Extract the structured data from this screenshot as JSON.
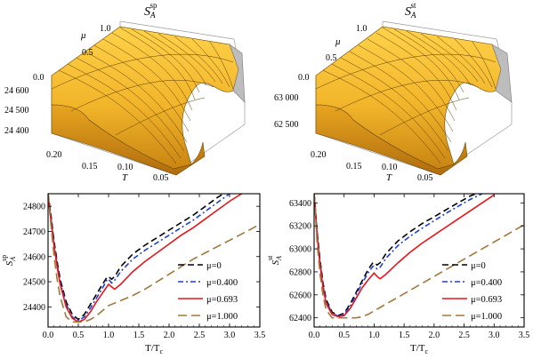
{
  "panels_3d": [
    {
      "title_main": "S",
      "title_sub": "A",
      "title_sup": "sp",
      "mu_label": "μ",
      "mu_ticks": [
        "1.0",
        "0.5",
        "0.0"
      ],
      "t_label": "T",
      "t_ticks": [
        "0.20",
        "0.15",
        "0.10",
        "0.05"
      ],
      "z_ticks": [
        "24 600",
        "24 500",
        "24 400"
      ]
    },
    {
      "title_main": "S",
      "title_sub": "A",
      "title_sup": "st",
      "mu_label": "μ",
      "mu_ticks": [
        "1.0",
        "0.5",
        "0.0"
      ],
      "t_label": "T",
      "t_ticks": [
        "0.20",
        "0.15",
        "0.10",
        "0.05"
      ],
      "z_ticks": [
        "63 000",
        "62 500"
      ]
    }
  ],
  "chart_data": [
    {
      "type": "line",
      "xlabel": "T/T",
      "xlabel_sub": "c",
      "ylabel": "S",
      "ylabel_sub": "A",
      "ylabel_sup": "sp",
      "xlim": [
        0,
        3.5
      ],
      "ylim": [
        24320,
        24850
      ],
      "xticks": [
        "0.0",
        "0.5",
        "1.0",
        "1.5",
        "2.0",
        "2.5",
        "3.0",
        "3.5"
      ],
      "yticks": [
        "24400",
        "24500",
        "24600",
        "24700",
        "24800"
      ],
      "legend_position": "bottom-right",
      "series": [
        {
          "name": "μ=0",
          "color": "#000000",
          "dash": "7,4",
          "x": [
            0.0,
            0.05,
            0.1,
            0.15,
            0.2,
            0.3,
            0.4,
            0.5,
            0.6,
            0.7,
            0.8,
            0.9,
            0.98,
            1.0,
            1.05,
            1.1,
            1.2,
            1.4,
            1.6,
            1.8,
            2.0,
            2.2,
            2.4,
            2.6,
            2.8,
            2.9
          ],
          "y": [
            24850,
            24760,
            24660,
            24580,
            24510,
            24420,
            24370,
            24350,
            24370,
            24410,
            24450,
            24490,
            24520,
            24520,
            24510,
            24520,
            24560,
            24610,
            24645,
            24675,
            24705,
            24735,
            24765,
            24800,
            24835,
            24850
          ]
        },
        {
          "name": "μ=0.400",
          "color": "#1f3fd0",
          "dash": "6,3,2,3",
          "x": [
            0.0,
            0.05,
            0.1,
            0.15,
            0.2,
            0.3,
            0.4,
            0.5,
            0.6,
            0.7,
            0.8,
            0.9,
            0.98,
            1.0,
            1.05,
            1.1,
            1.2,
            1.4,
            1.6,
            1.8,
            2.0,
            2.2,
            2.4,
            2.6,
            2.8,
            3.0
          ],
          "y": [
            24850,
            24750,
            24650,
            24570,
            24500,
            24410,
            24360,
            24345,
            24360,
            24395,
            24435,
            24475,
            24510,
            24510,
            24495,
            24505,
            24540,
            24590,
            24625,
            24655,
            24685,
            24715,
            24745,
            24780,
            24815,
            24850
          ]
        },
        {
          "name": "μ=0.693",
          "color": "#e8151b",
          "dash": "",
          "x": [
            0.0,
            0.05,
            0.1,
            0.15,
            0.2,
            0.3,
            0.4,
            0.5,
            0.6,
            0.7,
            0.8,
            0.9,
            1.0,
            1.05,
            1.1,
            1.2,
            1.4,
            1.6,
            1.8,
            2.0,
            2.2,
            2.4,
            2.6,
            2.8,
            3.0,
            3.2
          ],
          "y": [
            24850,
            24740,
            24640,
            24560,
            24490,
            24400,
            24355,
            24340,
            24350,
            24380,
            24420,
            24455,
            24490,
            24480,
            24470,
            24490,
            24540,
            24580,
            24615,
            24650,
            24685,
            24715,
            24750,
            24785,
            24820,
            24850
          ]
        },
        {
          "name": "μ=1.000",
          "color": "#a0783c",
          "dash": "10,5",
          "x": [
            0.0,
            0.05,
            0.1,
            0.15,
            0.2,
            0.3,
            0.4,
            0.5,
            0.6,
            0.7,
            0.8,
            0.9,
            1.0,
            1.1,
            1.2,
            1.4,
            1.6,
            1.8,
            2.0,
            2.2,
            2.4,
            2.6,
            2.8,
            3.0,
            3.2,
            3.4,
            3.5
          ],
          "y": [
            24850,
            24720,
            24600,
            24510,
            24440,
            24360,
            24340,
            24340,
            24340,
            24350,
            24365,
            24385,
            24405,
            24415,
            24425,
            24445,
            24470,
            24500,
            24530,
            24560,
            24590,
            24615,
            24640,
            24665,
            24690,
            24715,
            24730
          ]
        }
      ]
    },
    {
      "type": "line",
      "xlabel": "T/T",
      "xlabel_sub": "c",
      "ylabel": "S",
      "ylabel_sub": "A",
      "ylabel_sup": "st",
      "xlim": [
        0,
        3.5
      ],
      "ylim": [
        62320,
        63480
      ],
      "xticks": [
        "0.0",
        "0.5",
        "1.0",
        "1.5",
        "2.0",
        "2.5",
        "3.0",
        "3.5"
      ],
      "yticks": [
        "62400",
        "62600",
        "62800",
        "63000",
        "63200",
        "63400"
      ],
      "legend_position": "bottom-right",
      "series": [
        {
          "name": "μ=0",
          "color": "#000000",
          "dash": "7,4",
          "x": [
            0.0,
            0.05,
            0.1,
            0.15,
            0.2,
            0.3,
            0.4,
            0.5,
            0.6,
            0.7,
            0.8,
            0.9,
            0.98,
            1.0,
            1.05,
            1.1,
            1.2,
            1.4,
            1.6,
            1.8,
            2.0,
            2.2,
            2.4,
            2.6,
            2.7
          ],
          "y": [
            63480,
            63150,
            62900,
            62700,
            62560,
            62450,
            62420,
            62440,
            62520,
            62620,
            62720,
            62820,
            62880,
            62880,
            62860,
            62880,
            62960,
            63070,
            63150,
            63220,
            63280,
            63340,
            63400,
            63460,
            63480
          ]
        },
        {
          "name": "μ=0.400",
          "color": "#1f3fd0",
          "dash": "6,3,2,3",
          "x": [
            0.0,
            0.05,
            0.1,
            0.15,
            0.2,
            0.3,
            0.4,
            0.5,
            0.6,
            0.7,
            0.8,
            0.9,
            0.98,
            1.0,
            1.05,
            1.1,
            1.2,
            1.4,
            1.6,
            1.8,
            2.0,
            2.2,
            2.4,
            2.6,
            2.8
          ],
          "y": [
            63480,
            63140,
            62880,
            62680,
            62545,
            62440,
            62415,
            62430,
            62500,
            62600,
            62700,
            62790,
            62850,
            62850,
            62825,
            62840,
            62920,
            63030,
            63110,
            63180,
            63245,
            63310,
            63370,
            63430,
            63480
          ]
        },
        {
          "name": "μ=0.693",
          "color": "#e8151b",
          "dash": "",
          "x": [
            0.0,
            0.05,
            0.1,
            0.15,
            0.2,
            0.3,
            0.4,
            0.5,
            0.6,
            0.7,
            0.8,
            0.9,
            1.0,
            1.05,
            1.1,
            1.2,
            1.4,
            1.6,
            1.8,
            2.0,
            2.2,
            2.4,
            2.6,
            2.8,
            3.0
          ],
          "y": [
            63480,
            63120,
            62860,
            62660,
            62525,
            62430,
            62410,
            62420,
            62480,
            62570,
            62660,
            62730,
            62790,
            62760,
            62740,
            62780,
            62880,
            62970,
            63050,
            63120,
            63190,
            63260,
            63330,
            63400,
            63470
          ]
        },
        {
          "name": "μ=1.000",
          "color": "#a0783c",
          "dash": "10,5",
          "x": [
            0.0,
            0.05,
            0.1,
            0.15,
            0.2,
            0.3,
            0.4,
            0.5,
            0.6,
            0.7,
            0.8,
            0.9,
            1.0,
            1.1,
            1.2,
            1.4,
            1.6,
            1.8,
            2.0,
            2.2,
            2.4,
            2.6,
            2.8,
            3.0,
            3.2,
            3.4,
            3.5
          ],
          "y": [
            63480,
            63050,
            62780,
            62590,
            62470,
            62400,
            62400,
            62400,
            62400,
            62400,
            62410,
            62430,
            62460,
            62490,
            62520,
            62580,
            62640,
            62700,
            62760,
            62820,
            62880,
            62940,
            63000,
            63060,
            63120,
            63180,
            63210
          ]
        }
      ]
    }
  ]
}
